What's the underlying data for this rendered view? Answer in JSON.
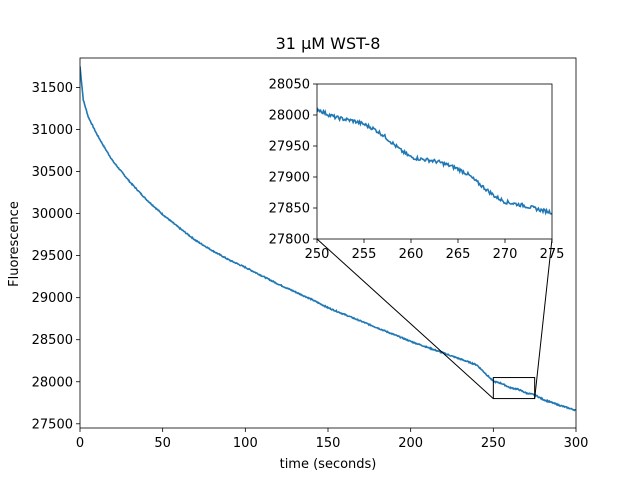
{
  "chart_data": {
    "type": "line",
    "title": "31 µM WST-8",
    "xlabel": "time (seconds)",
    "ylabel": "Fluorescence",
    "xlim": [
      0,
      300
    ],
    "ylim": [
      27450,
      31850
    ],
    "xticks": [
      0,
      50,
      100,
      150,
      200,
      250,
      300
    ],
    "yticks": [
      27500,
      28000,
      28500,
      29000,
      29500,
      30000,
      30500,
      31000,
      31500
    ],
    "grid": false,
    "line_color": "#1f77b4",
    "series": [
      {
        "x": [
          0,
          2,
          5,
          10,
          15,
          20,
          25,
          30,
          40,
          50,
          60,
          70,
          80,
          90,
          100,
          110,
          120,
          130,
          140,
          150,
          160,
          170,
          180,
          190,
          200,
          210,
          220,
          230,
          240,
          250,
          255,
          260,
          265,
          270,
          275,
          280,
          290,
          300
        ],
        "y": [
          31750,
          31350,
          31150,
          30950,
          30780,
          30620,
          30500,
          30380,
          30170,
          29990,
          29830,
          29680,
          29560,
          29450,
          29360,
          29260,
          29160,
          29070,
          28980,
          28880,
          28800,
          28720,
          28640,
          28560,
          28480,
          28410,
          28340,
          28270,
          28200,
          28005,
          27980,
          27930,
          27910,
          27865,
          27845,
          27790,
          27720,
          27660
        ]
      }
    ],
    "inset": {
      "xlim": [
        250,
        275
      ],
      "ylim": [
        27800,
        28050
      ],
      "xticks": [
        250,
        255,
        260,
        265,
        270,
        275
      ],
      "yticks": [
        27800,
        27850,
        27900,
        27950,
        28000,
        28050
      ],
      "series": [
        {
          "x": [
            250,
            251,
            252,
            253,
            254,
            255,
            256,
            257,
            258,
            259,
            260,
            261,
            262,
            263,
            264,
            265,
            266,
            267,
            268,
            269,
            270,
            271,
            272,
            273,
            274,
            275
          ],
          "y": [
            28010,
            28002,
            27996,
            27993,
            27990,
            27985,
            27978,
            27968,
            27955,
            27942,
            27932,
            27929,
            27927,
            27924,
            27919,
            27913,
            27905,
            27892,
            27880,
            27868,
            27860,
            27857,
            27854,
            27850,
            27846,
            27843
          ]
        }
      ]
    }
  }
}
